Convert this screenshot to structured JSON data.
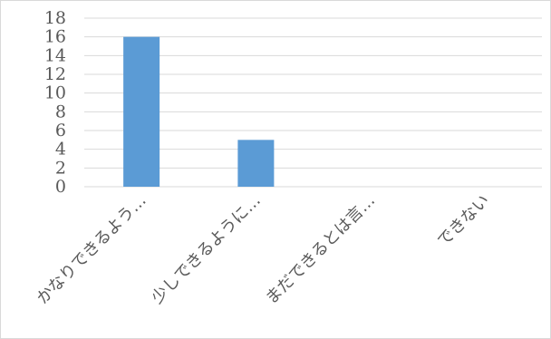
{
  "chart_data": {
    "type": "bar",
    "categories": [
      "かなりできるよう…",
      "少しできるように…",
      "まだできるとは言…",
      "できない"
    ],
    "values": [
      16,
      5,
      0,
      0
    ],
    "title": "",
    "xlabel": "",
    "ylabel": "",
    "ylim": [
      0,
      18
    ],
    "yticks": [
      0,
      2,
      4,
      6,
      8,
      10,
      12,
      14,
      16,
      18
    ],
    "grid": true,
    "legend": "none",
    "colors": {
      "bar": "#5b9bd5",
      "grid": "#d9d9d9",
      "text": "#595959"
    }
  }
}
